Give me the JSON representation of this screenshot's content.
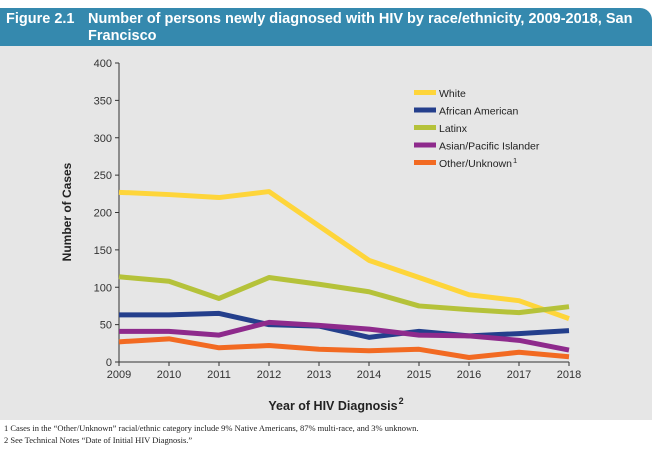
{
  "figure_number": "Figure 2.1",
  "chart_data": {
    "type": "line",
    "title": "Number of persons newly diagnosed with HIV by race/ethnicity, 2009-2018, San Francisco",
    "xlabel": "Year of HIV Diagnosis",
    "xlabel_superscript": "2",
    "ylabel": "Number of Cases",
    "ylim": [
      0,
      400
    ],
    "yticks": [
      0,
      50,
      100,
      150,
      200,
      250,
      300,
      350,
      400
    ],
    "x": [
      2009,
      2010,
      2011,
      2012,
      2013,
      2014,
      2015,
      2016,
      2017,
      2018
    ],
    "legend_position": "top-right",
    "series": [
      {
        "name": "White",
        "color": "#fed53a",
        "values": [
          227,
          224,
          220,
          228,
          182,
          136,
          113,
          90,
          82,
          58
        ]
      },
      {
        "name": "African American",
        "color": "#243f8c",
        "values": [
          63,
          63,
          65,
          50,
          48,
          33,
          41,
          35,
          38,
          42
        ]
      },
      {
        "name": "Latinx",
        "color": "#b5c23a",
        "values": [
          114,
          108,
          85,
          113,
          104,
          94,
          75,
          70,
          66,
          74
        ]
      },
      {
        "name": "Asian/Pacific Islander",
        "color": "#8e2a8c",
        "values": [
          41,
          41,
          36,
          53,
          49,
          44,
          36,
          35,
          29,
          16
        ]
      },
      {
        "name": "Other/Unknown",
        "superscript": "1",
        "color": "#f26a22",
        "values": [
          27,
          31,
          19,
          22,
          17,
          15,
          17,
          6,
          13,
          7
        ]
      }
    ]
  },
  "footnotes": [
    "1  Cases in the “Other/Unknown” racial/ethnic category include 9% Native Americans, 87% multi-race, and 3% unknown.",
    "2  See Technical Notes “Date of Initial HIV Diagnosis.”"
  ]
}
